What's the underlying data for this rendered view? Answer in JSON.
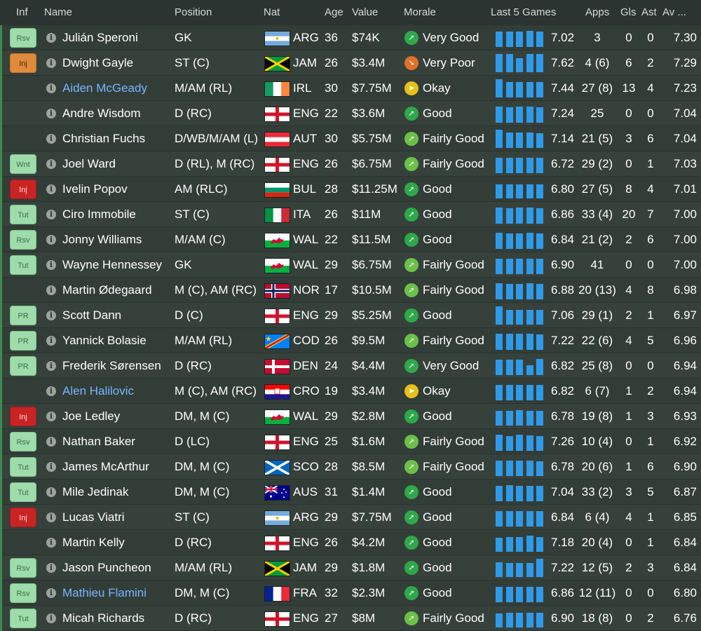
{
  "headers": {
    "inf": "Inf",
    "name": "Name",
    "position": "Position",
    "nat": "Nat",
    "age": "Age",
    "value": "Value",
    "morale": "Morale",
    "last5": "Last 5 Games",
    "apps": "Apps",
    "gls": "Gls",
    "ast": "Ast",
    "av": "Av ..."
  },
  "morale_colors": {
    "Very Good": "#2ea84a",
    "Good": "#2ea84a",
    "Fairly Good": "#6cc04a",
    "Okay": "#e5c21a",
    "Very Poor": "#e0702a"
  },
  "rows": [
    {
      "inf": "Rsv",
      "inf_color": "green",
      "name": "Julián Speroni",
      "link": false,
      "position": "GK",
      "flag": "ARG",
      "nat": "ARG",
      "age": "36",
      "value": "$74K",
      "morale": "Very Good",
      "last5": [
        0.85,
        0.85,
        0.85,
        0.9,
        0.85
      ],
      "avg5": "7.02",
      "apps": "3",
      "gls": "0",
      "ast": "0",
      "av": "7.30"
    },
    {
      "inf": "Inj",
      "inf_color": "orange",
      "name": "Dwight Gayle",
      "link": false,
      "position": "ST (C)",
      "flag": "JAM",
      "nat": "JAM",
      "age": "26",
      "value": "$3.4M",
      "morale": "Very Poor",
      "last5": [
        1.0,
        1.0,
        0.75,
        1.0,
        1.0
      ],
      "avg5": "7.62",
      "apps": "4 (6)",
      "gls": "6",
      "ast": "2",
      "av": "7.29"
    },
    {
      "inf": "",
      "inf_color": "",
      "name": "Aiden McGeady",
      "link": true,
      "position": "M/AM (RL)",
      "flag": "IRL",
      "nat": "IRL",
      "age": "30",
      "value": "$7.75M",
      "morale": "Okay",
      "last5": [
        1.0,
        0.85,
        0.85,
        0.85,
        0.85
      ],
      "avg5": "7.44",
      "apps": "27 (8)",
      "gls": "13",
      "ast": "4",
      "av": "7.23"
    },
    {
      "inf": "",
      "inf_color": "",
      "name": "Andre Wisdom",
      "link": false,
      "position": "D (RC)",
      "flag": "ENG",
      "nat": "ENG",
      "age": "22",
      "value": "$3.6M",
      "morale": "Good",
      "last5": [
        0.9,
        0.85,
        0.9,
        0.9,
        0.85
      ],
      "avg5": "7.24",
      "apps": "25",
      "gls": "0",
      "ast": "0",
      "av": "7.04"
    },
    {
      "inf": "",
      "inf_color": "",
      "name": "Christian Fuchs",
      "link": false,
      "position": "D/WB/M/AM (L)",
      "flag": "AUT",
      "nat": "AUT",
      "age": "30",
      "value": "$5.75M",
      "morale": "Fairly Good",
      "last5": [
        1.0,
        0.85,
        0.85,
        0.85,
        0.8
      ],
      "avg5": "7.14",
      "apps": "21 (5)",
      "gls": "3",
      "ast": "6",
      "av": "7.04"
    },
    {
      "inf": "Wnt",
      "inf_color": "green",
      "name": "Joel Ward",
      "link": false,
      "position": "D (RL), M (RC)",
      "flag": "ENG",
      "nat": "ENG",
      "age": "26",
      "value": "$6.75M",
      "morale": "Fairly Good",
      "last5": [
        0.85,
        0.85,
        0.85,
        0.85,
        0.85
      ],
      "avg5": "6.72",
      "apps": "29 (2)",
      "gls": "0",
      "ast": "1",
      "av": "7.03"
    },
    {
      "inf": "Inj",
      "inf_color": "red",
      "name": "Ivelin Popov",
      "link": false,
      "position": "AM (RLC)",
      "flag": "BUL",
      "nat": "BUL",
      "age": "28",
      "value": "$11.25M",
      "morale": "Good",
      "last5": [
        0.75,
        0.75,
        0.75,
        0.75,
        0.75
      ],
      "avg5": "6.80",
      "apps": "27 (5)",
      "gls": "8",
      "ast": "4",
      "av": "7.01"
    },
    {
      "inf": "Tut",
      "inf_color": "green",
      "name": "Ciro Immobile",
      "link": false,
      "position": "ST (C)",
      "flag": "ITA",
      "nat": "ITA",
      "age": "26",
      "value": "$11M",
      "morale": "Good",
      "last5": [
        0.9,
        0.85,
        0.9,
        0.9,
        0.85
      ],
      "avg5": "6.86",
      "apps": "33 (4)",
      "gls": "20",
      "ast": "7",
      "av": "7.00"
    },
    {
      "inf": "Rsv",
      "inf_color": "green",
      "name": "Jonny Williams",
      "link": false,
      "position": "M/AM (C)",
      "flag": "WAL",
      "nat": "WAL",
      "age": "22",
      "value": "$11.5M",
      "morale": "Good",
      "last5": [
        0.9,
        0.85,
        0.85,
        0.9,
        0.85
      ],
      "avg5": "6.84",
      "apps": "21 (2)",
      "gls": "2",
      "ast": "6",
      "av": "7.00"
    },
    {
      "inf": "Tut",
      "inf_color": "green",
      "name": "Wayne Hennessey",
      "link": false,
      "position": "GK",
      "flag": "WAL",
      "nat": "WAL",
      "age": "29",
      "value": "$6.75M",
      "morale": "Fairly Good",
      "last5": [
        0.85,
        0.85,
        0.85,
        0.85,
        0.85
      ],
      "avg5": "6.90",
      "apps": "41",
      "gls": "0",
      "ast": "0",
      "av": "7.00"
    },
    {
      "inf": "",
      "inf_color": "",
      "name": "Martin Ødegaard",
      "link": false,
      "position": "M (C), AM (RC)",
      "flag": "NOR",
      "nat": "NOR",
      "age": "17",
      "value": "$10.5M",
      "morale": "Fairly Good",
      "last5": [
        0.9,
        0.85,
        0.85,
        0.9,
        0.85
      ],
      "avg5": "6.88",
      "apps": "20 (13)",
      "gls": "4",
      "ast": "8",
      "av": "6.98"
    },
    {
      "inf": "PR",
      "inf_color": "green",
      "name": "Scott Dann",
      "link": false,
      "position": "D (C)",
      "flag": "ENG",
      "nat": "ENG",
      "age": "29",
      "value": "$5.25M",
      "morale": "Good",
      "last5": [
        1.0,
        0.8,
        0.8,
        0.8,
        0.8
      ],
      "avg5": "7.06",
      "apps": "29 (1)",
      "gls": "2",
      "ast": "1",
      "av": "6.97"
    },
    {
      "inf": "PR",
      "inf_color": "green",
      "name": "Yannick Bolasie",
      "link": false,
      "position": "M/AM (RL)",
      "flag": "COD",
      "nat": "COD",
      "age": "26",
      "value": "$9.5M",
      "morale": "Fairly Good",
      "last5": [
        0.9,
        0.9,
        0.9,
        0.9,
        0.85
      ],
      "avg5": "7.22",
      "apps": "22 (6)",
      "gls": "4",
      "ast": "5",
      "av": "6.96"
    },
    {
      "inf": "PR",
      "inf_color": "green",
      "name": "Frederik Sørensen",
      "link": false,
      "position": "D (RC)",
      "flag": "DEN",
      "nat": "DEN",
      "age": "24",
      "value": "$4.4M",
      "morale": "Very Good",
      "last5": [
        0.85,
        0.85,
        0.85,
        0.55,
        0.9
      ],
      "avg5": "6.82",
      "apps": "25 (8)",
      "gls": "0",
      "ast": "0",
      "av": "6.94"
    },
    {
      "inf": "",
      "inf_color": "",
      "name": "Alen Halilovic",
      "link": true,
      "position": "M (C), AM (RC)",
      "flag": "CRO",
      "nat": "CRO",
      "age": "19",
      "value": "$3.4M",
      "morale": "Okay",
      "last5": [
        0.85,
        0.85,
        0.85,
        0.85,
        0.85
      ],
      "avg5": "6.82",
      "apps": "6 (7)",
      "gls": "1",
      "ast": "2",
      "av": "6.94"
    },
    {
      "inf": "Inj",
      "inf_color": "red",
      "name": "Joe Ledley",
      "link": false,
      "position": "DM, M (C)",
      "flag": "WAL",
      "nat": "WAL",
      "age": "29",
      "value": "$2.8M",
      "morale": "Good",
      "last5": [
        0.8,
        0.8,
        0.85,
        0.8,
        0.8
      ],
      "avg5": "6.78",
      "apps": "19 (8)",
      "gls": "1",
      "ast": "3",
      "av": "6.93"
    },
    {
      "inf": "Rsv",
      "inf_color": "green",
      "name": "Nathan Baker",
      "link": false,
      "position": "D (LC)",
      "flag": "ENG",
      "nat": "ENG",
      "age": "25",
      "value": "$1.6M",
      "morale": "Fairly Good",
      "last5": [
        0.9,
        0.8,
        0.9,
        0.85,
        0.8
      ],
      "avg5": "7.26",
      "apps": "10 (4)",
      "gls": "0",
      "ast": "1",
      "av": "6.92"
    },
    {
      "inf": "Tut",
      "inf_color": "green",
      "name": "James McArthur",
      "link": false,
      "position": "DM, M (C)",
      "flag": "SCO",
      "nat": "SCO",
      "age": "28",
      "value": "$8.5M",
      "morale": "Fairly Good",
      "last5": [
        0.85,
        0.85,
        0.85,
        0.85,
        0.8
      ],
      "avg5": "6.78",
      "apps": "20 (6)",
      "gls": "1",
      "ast": "6",
      "av": "6.90"
    },
    {
      "inf": "Tut",
      "inf_color": "green",
      "name": "Mile Jedinak",
      "link": false,
      "position": "DM, M (C)",
      "flag": "AUS",
      "nat": "AUS",
      "age": "31",
      "value": "$1.4M",
      "morale": "Good",
      "last5": [
        0.85,
        0.9,
        0.85,
        0.85,
        0.85
      ],
      "avg5": "7.04",
      "apps": "33 (2)",
      "gls": "3",
      "ast": "5",
      "av": "6.87"
    },
    {
      "inf": "Inj",
      "inf_color": "red",
      "name": "Lucas Viatri",
      "link": false,
      "position": "ST (C)",
      "flag": "ARG",
      "nat": "ARG",
      "age": "29",
      "value": "$7.75M",
      "morale": "Good",
      "last5": [
        0.85,
        0.85,
        0.85,
        0.85,
        0.85
      ],
      "avg5": "6.84",
      "apps": "6 (4)",
      "gls": "4",
      "ast": "1",
      "av": "6.85"
    },
    {
      "inf": "",
      "inf_color": "",
      "name": "Martin Kelly",
      "link": false,
      "position": "D (RC)",
      "flag": "ENG",
      "nat": "ENG",
      "age": "26",
      "value": "$4.2M",
      "morale": "Good",
      "last5": [
        0.75,
        0.8,
        0.8,
        0.9,
        0.8
      ],
      "avg5": "7.18",
      "apps": "20 (4)",
      "gls": "0",
      "ast": "1",
      "av": "6.84"
    },
    {
      "inf": "Rsv",
      "inf_color": "green",
      "name": "Jason Puncheon",
      "link": false,
      "position": "M/AM (RL)",
      "flag": "JAM",
      "nat": "JAM",
      "age": "29",
      "value": "$1.8M",
      "morale": "Good",
      "last5": [
        0.8,
        0.75,
        0.75,
        0.75,
        1.0
      ],
      "avg5": "7.22",
      "apps": "12 (5)",
      "gls": "2",
      "ast": "3",
      "av": "6.84"
    },
    {
      "inf": "Rsv",
      "inf_color": "green",
      "name": "Mathieu Flamini",
      "link": true,
      "position": "DM, M (C)",
      "flag": "FRA",
      "nat": "FRA",
      "age": "32",
      "value": "$2.3M",
      "morale": "Good",
      "last5": [
        0.85,
        0.85,
        0.85,
        0.85,
        0.85
      ],
      "avg5": "6.86",
      "apps": "12 (11)",
      "gls": "0",
      "ast": "0",
      "av": "6.80"
    },
    {
      "inf": "Tut",
      "inf_color": "green",
      "name": "Micah Richards",
      "link": false,
      "position": "D (RC)",
      "flag": "ENG",
      "nat": "ENG",
      "age": "27",
      "value": "$8M",
      "morale": "Fairly Good",
      "last5": [
        0.75,
        0.8,
        0.8,
        0.8,
        0.8
      ],
      "avg5": "6.90",
      "apps": "18 (8)",
      "gls": "0",
      "ast": "2",
      "av": "6.76"
    }
  ]
}
